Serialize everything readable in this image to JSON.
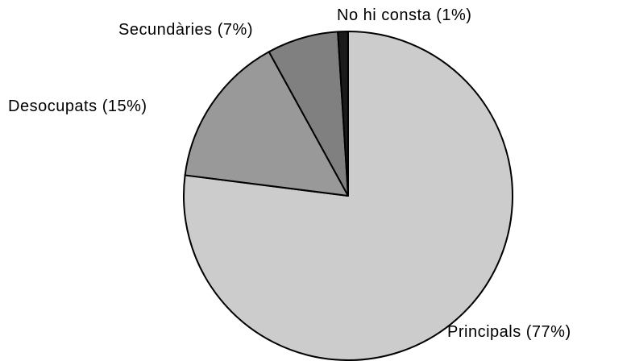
{
  "chart_data": {
    "type": "pie",
    "categories": [
      "Principals",
      "Desocupats",
      "Secundàries",
      "No hi consta"
    ],
    "values": [
      77,
      15,
      7,
      1
    ],
    "value_labels": [
      "(77%)",
      "(15%)",
      "(7%)",
      "(1%)"
    ],
    "colors": [
      "#cccccc",
      "#999999",
      "#808080",
      "#1a1a1a"
    ]
  }
}
